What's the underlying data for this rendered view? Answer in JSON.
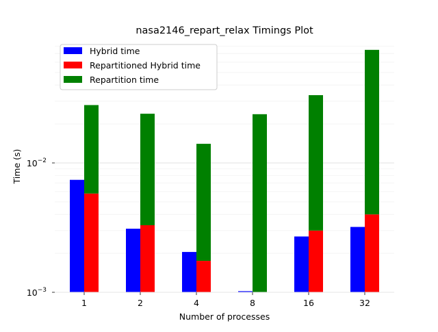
{
  "chart_data": {
    "type": "bar",
    "title": "nasa2146_repart_relax Timings Plot",
    "xlabel": "Number of processes",
    "ylabel": "Time (s)",
    "yscale": "log",
    "ylim": [
      0.001,
      0.1
    ],
    "ytick_labels": [
      "10^-3",
      "10^-2"
    ],
    "ytick_values": [
      0.001,
      0.01
    ],
    "categories": [
      "1",
      "2",
      "4",
      "8",
      "16",
      "32"
    ],
    "stacked_groups": "Repartitioned Hybrid time and Repartition time are stacked; Hybrid time stands alone",
    "grid": true,
    "legend_position": "top-left",
    "series": [
      {
        "name": "Hybrid time",
        "color": "#0000ff",
        "values": [
          0.0074,
          0.0031,
          0.00205,
          0.00102,
          0.0027,
          0.0032
        ]
      },
      {
        "name": "Repartitioned Hybrid time",
        "color": "#ff0000",
        "values": [
          0.0058,
          0.0033,
          0.00175,
          0.001,
          0.003,
          0.004
        ]
      },
      {
        "name": "Repartition time",
        "color": "#008000",
        "values": [
          0.0222,
          0.0207,
          0.0123,
          0.0228,
          0.0304,
          0.0708
        ]
      }
    ]
  }
}
